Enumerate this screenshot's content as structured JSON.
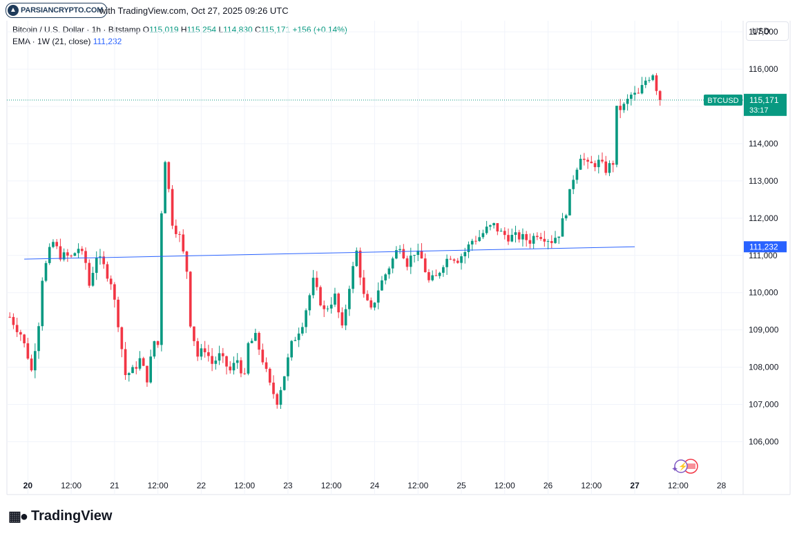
{
  "header": {
    "watermark_text": "PARSIANCRYPTO.COM",
    "caption": "with TradingView.com, Oct 27, 2025 09:26 UTC"
  },
  "legend": {
    "symbol_desc": "Bitcoin / U.S. Dollar · 1h · Bitstamp",
    "o_label": "O",
    "o_value": "115,019",
    "h_label": "H",
    "h_value": "115,254",
    "l_label": "L",
    "l_value": "114,830",
    "c_label": "C",
    "c_value": "115,171",
    "change": "+156 (+0.14%)",
    "ema_label": "EMA · 1W (21, close)",
    "ema_value": "111,232"
  },
  "currency_button": "USD",
  "price_tag": {
    "symbol": "BTCUSD",
    "price": "115,171",
    "countdown": "33:17"
  },
  "ema_tag": "111,232",
  "footer_brand": "TradingView",
  "colors": {
    "up": "#089981",
    "down": "#f23645",
    "ema": "#2962ff",
    "grid": "#f0f3fa"
  },
  "chart_data": {
    "type": "candlestick",
    "y_ticks": [
      "106,000",
      "107,000",
      "108,000",
      "109,000",
      "110,000",
      "111,000",
      "112,000",
      "113,000",
      "114,000",
      "115,000",
      "116,000",
      "117,000"
    ],
    "y_tick_values": [
      106000,
      107000,
      108000,
      109000,
      110000,
      111000,
      112000,
      113000,
      114000,
      115000,
      116000,
      117000
    ],
    "ylim": [
      105100,
      117300
    ],
    "x_labels": [
      "20",
      "12:00",
      "21",
      "12:00",
      "22",
      "12:00",
      "23",
      "12:00",
      "24",
      "12:00",
      "25",
      "12:00",
      "26",
      "12:00",
      "27",
      "12:00",
      "28"
    ],
    "x_label_hours": [
      0,
      12,
      24,
      36,
      48,
      60,
      72,
      84,
      96,
      108,
      120,
      132,
      144,
      156,
      168,
      180,
      192
    ],
    "x_label_bold": [
      true,
      false,
      false,
      false,
      false,
      false,
      false,
      false,
      false,
      false,
      false,
      false,
      false,
      false,
      true,
      false,
      false
    ],
    "xlim_hours": [
      -5.8,
      198
    ],
    "ema": {
      "name": "EMA 1W (21, close)",
      "start_hour": -1,
      "end_hour": 168,
      "start_value": 110900,
      "end_value": 111232
    },
    "last_close": 115171,
    "series_anchors": {
      "description": "hourly close path anchors [hour, close]",
      "points": [
        [
          -5,
          109350
        ],
        [
          -2,
          108900
        ],
        [
          0,
          108300
        ],
        [
          1,
          107900
        ],
        [
          3,
          109200
        ],
        [
          4,
          110400
        ],
        [
          6,
          111100
        ],
        [
          7,
          111350
        ],
        [
          9,
          111000
        ],
        [
          12,
          110950
        ],
        [
          14,
          111200
        ],
        [
          16,
          110800
        ],
        [
          17,
          110200
        ],
        [
          19,
          111000
        ],
        [
          21,
          110700
        ],
        [
          23,
          110300
        ],
        [
          25,
          109200
        ],
        [
          27,
          107800
        ],
        [
          29,
          107900
        ],
        [
          31,
          108200
        ],
        [
          33,
          107700
        ],
        [
          35,
          108700
        ],
        [
          36,
          108600
        ],
        [
          37,
          112200
        ],
        [
          38,
          113600
        ],
        [
          40,
          111900
        ],
        [
          42,
          111500
        ],
        [
          44,
          110600
        ],
        [
          45,
          109200
        ],
        [
          47,
          108300
        ],
        [
          49,
          108500
        ],
        [
          51,
          108100
        ],
        [
          53,
          108300
        ],
        [
          56,
          107900
        ],
        [
          58,
          108200
        ],
        [
          60,
          107700
        ],
        [
          61,
          108600
        ],
        [
          63,
          108800
        ],
        [
          65,
          108200
        ],
        [
          67,
          107500
        ],
        [
          69,
          107100
        ],
        [
          71,
          107800
        ],
        [
          73,
          108600
        ],
        [
          76,
          109200
        ],
        [
          79,
          110300
        ],
        [
          82,
          109500
        ],
        [
          85,
          109900
        ],
        [
          87,
          109000
        ],
        [
          89,
          110200
        ],
        [
          91,
          111100
        ],
        [
          93,
          109900
        ],
        [
          95,
          109500
        ],
        [
          97,
          110100
        ],
        [
          100,
          110700
        ],
        [
          103,
          111300
        ],
        [
          105,
          110800
        ],
        [
          107,
          111100
        ],
        [
          109,
          110900
        ],
        [
          111,
          110300
        ],
        [
          113,
          110400
        ],
        [
          115,
          110800
        ],
        [
          117,
          111000
        ],
        [
          119,
          110900
        ],
        [
          121,
          111100
        ],
        [
          123,
          111400
        ],
        [
          125,
          111500
        ],
        [
          127,
          111700
        ],
        [
          129,
          111800
        ],
        [
          131,
          111600
        ],
        [
          133,
          111500
        ],
        [
          136,
          111500
        ],
        [
          139,
          111400
        ],
        [
          141,
          111600
        ],
        [
          143,
          111500
        ],
        [
          145,
          111400
        ],
        [
          147,
          111600
        ],
        [
          149,
          112200
        ],
        [
          151,
          113100
        ],
        [
          153,
          113700
        ],
        [
          155,
          113400
        ],
        [
          158,
          113500
        ],
        [
          160,
          113300
        ],
        [
          162,
          113500
        ],
        [
          163,
          114900
        ],
        [
          165,
          115000
        ],
        [
          167,
          115300
        ],
        [
          169,
          115300
        ],
        [
          171,
          115700
        ],
        [
          173,
          115900
        ],
        [
          175,
          115100
        ]
      ]
    }
  }
}
